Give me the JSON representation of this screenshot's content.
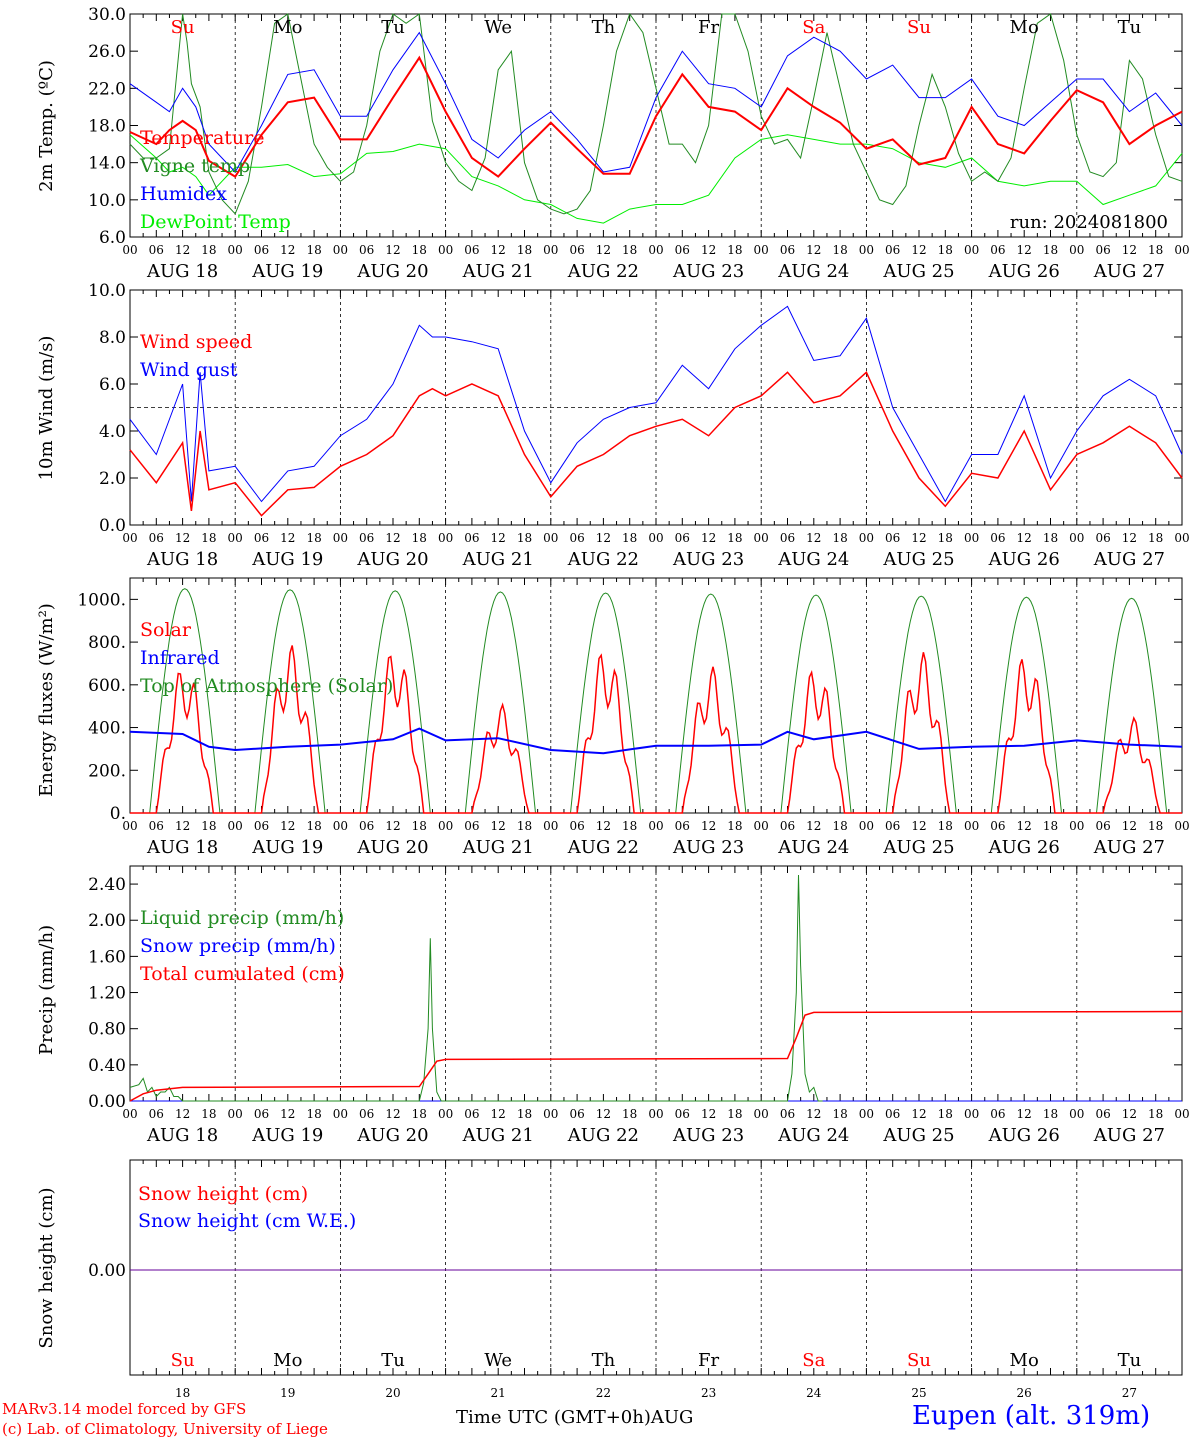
{
  "chart_data": [
    {
      "type": "line",
      "ylabel": "2m Temp. (ºC)",
      "ylim": [
        6.0,
        30.0
      ],
      "yticks": [
        "6.0",
        "10.0",
        "14.0",
        "18.0",
        "22.0",
        "26.0",
        "30.0"
      ],
      "run_label": "run: 2024081800",
      "x_unit": "hours since 2024-08-18 00 UTC",
      "series": [
        {
          "name": "Temperature",
          "color": "#ff0000",
          "x": [
            0,
            6,
            9,
            12,
            15,
            18,
            24,
            30,
            36,
            42,
            48,
            54,
            60,
            66,
            72,
            78,
            84,
            90,
            96,
            102,
            108,
            114,
            120,
            126,
            132,
            138,
            144,
            150,
            156,
            162,
            168,
            174,
            180,
            186,
            192,
            198,
            204,
            210,
            216,
            222,
            228,
            234,
            240
          ],
          "y": [
            17.3,
            16.0,
            17.5,
            18.5,
            17.5,
            14.2,
            12.5,
            17.0,
            20.5,
            21.0,
            16.5,
            16.5,
            21.0,
            25.3,
            19.5,
            14.5,
            12.5,
            15.5,
            18.3,
            15.5,
            12.8,
            12.8,
            19.0,
            23.5,
            20.0,
            19.5,
            17.5,
            22.0,
            20.0,
            18.3,
            15.5,
            16.5,
            13.8,
            14.5,
            20.0,
            16.0,
            15.0,
            18.5,
            21.8,
            20.5,
            16.0,
            18.0,
            19.5
          ]
        },
        {
          "name": "Vigne temp",
          "color": "#228b22",
          "x": [
            0,
            3,
            6,
            9,
            12,
            13,
            14,
            16,
            18,
            21,
            24,
            27,
            30,
            33,
            36,
            39,
            42,
            45,
            48,
            51,
            54,
            57,
            60,
            63,
            66,
            69,
            72,
            75,
            78,
            81,
            84,
            87,
            90,
            93,
            96,
            99,
            102,
            105,
            108,
            111,
            114,
            117,
            120,
            123,
            126,
            129,
            132,
            135,
            138,
            141,
            144,
            147,
            150,
            153,
            156,
            159,
            162,
            165,
            168,
            171,
            174,
            177,
            180,
            183,
            186,
            189,
            192,
            195,
            198,
            201,
            204,
            207,
            210,
            213,
            216,
            219,
            222,
            225,
            228,
            231,
            234,
            237,
            240
          ],
          "y": [
            16.0,
            14.5,
            14.5,
            15.5,
            30.0,
            27.0,
            22.5,
            20.0,
            13.0,
            10.0,
            8.5,
            12.0,
            20.0,
            29.0,
            30.0,
            23.0,
            16.0,
            13.5,
            12.0,
            13.0,
            18.0,
            26.0,
            30.0,
            29.0,
            30.0,
            18.5,
            14.0,
            12.0,
            11.0,
            14.5,
            24.0,
            26.0,
            14.0,
            10.0,
            9.0,
            8.5,
            9.0,
            11.0,
            18.0,
            26.0,
            30.0,
            28.0,
            22.0,
            16.0,
            16.0,
            14.0,
            18.0,
            30.0,
            30.0,
            26.0,
            19.0,
            16.0,
            16.5,
            14.5,
            21.0,
            28.0,
            22.0,
            16.0,
            13.0,
            10.0,
            9.5,
            11.5,
            18.0,
            23.5,
            20.0,
            15.0,
            12.0,
            13.0,
            12.0,
            14.5,
            22.0,
            29.0,
            30.0,
            25.0,
            17.0,
            13.0,
            12.5,
            14.0,
            25.0,
            23.0,
            17.0,
            12.5,
            12.0
          ]
        },
        {
          "name": "Humidex",
          "color": "#0000ff",
          "x": [
            0,
            6,
            9,
            12,
            15,
            18,
            24,
            30,
            36,
            42,
            48,
            54,
            60,
            66,
            72,
            78,
            84,
            90,
            96,
            102,
            108,
            114,
            120,
            126,
            132,
            138,
            144,
            150,
            156,
            162,
            168,
            174,
            180,
            186,
            192,
            198,
            204,
            210,
            216,
            222,
            228,
            234,
            240
          ],
          "y": [
            22.5,
            20.5,
            19.5,
            22.0,
            20.0,
            16.0,
            13.0,
            18.0,
            23.5,
            24.0,
            19.0,
            19.0,
            24.0,
            28.0,
            22.5,
            16.5,
            14.5,
            17.5,
            19.5,
            16.5,
            13.0,
            13.5,
            21.0,
            26.0,
            22.5,
            22.0,
            20.0,
            25.5,
            27.5,
            26.0,
            23.0,
            24.5,
            21.0,
            21.0,
            23.0,
            19.0,
            18.0,
            20.5,
            23.0,
            23.0,
            19.5,
            21.5,
            18.0
          ]
        },
        {
          "name": "DewPoint Temp",
          "color": "#00ee00",
          "x": [
            0,
            6,
            9,
            12,
            15,
            18,
            24,
            30,
            36,
            42,
            48,
            54,
            60,
            66,
            72,
            78,
            84,
            90,
            96,
            102,
            108,
            114,
            120,
            126,
            132,
            138,
            144,
            150,
            156,
            162,
            168,
            174,
            180,
            186,
            192,
            198,
            204,
            210,
            216,
            222,
            228,
            234,
            240
          ],
          "y": [
            17.0,
            14.5,
            13.0,
            13.5,
            12.5,
            10.5,
            13.5,
            13.5,
            13.8,
            12.5,
            12.8,
            15.0,
            15.2,
            16.0,
            15.5,
            12.5,
            11.5,
            10.0,
            9.5,
            8.0,
            7.5,
            9.0,
            9.5,
            9.5,
            10.5,
            14.5,
            16.5,
            17.0,
            16.5,
            16.0,
            16.0,
            15.5,
            14.0,
            13.5,
            14.5,
            12.0,
            11.5,
            12.0,
            12.0,
            9.5,
            10.5,
            11.5,
            15.0
          ]
        }
      ]
    },
    {
      "type": "line",
      "ylabel": "10m Wind (m/s)",
      "ylim": [
        0.0,
        10.0
      ],
      "yticks": [
        "0.0",
        "2.0",
        "4.0",
        "6.0",
        "8.0",
        "10.0"
      ],
      "ref_line": 5.0,
      "series": [
        {
          "name": "Wind speed",
          "color": "#ff0000",
          "x": [
            0,
            6,
            12,
            14,
            16,
            18,
            24,
            30,
            36,
            42,
            48,
            54,
            60,
            66,
            69,
            72,
            78,
            84,
            90,
            96,
            102,
            108,
            114,
            120,
            126,
            132,
            138,
            144,
            150,
            156,
            162,
            168,
            174,
            180,
            186,
            192,
            198,
            204,
            210,
            216,
            222,
            228,
            234,
            240
          ],
          "y": [
            3.2,
            1.8,
            3.5,
            0.6,
            4.0,
            1.5,
            1.8,
            0.4,
            1.5,
            1.6,
            2.5,
            3.0,
            3.8,
            5.5,
            5.8,
            5.5,
            6.0,
            5.5,
            3.0,
            1.2,
            2.5,
            3.0,
            3.8,
            4.2,
            4.5,
            3.8,
            5.0,
            5.5,
            6.5,
            5.2,
            5.5,
            6.5,
            4.0,
            2.0,
            0.8,
            2.2,
            2.0,
            4.0,
            1.5,
            3.0,
            3.5,
            4.2,
            3.5,
            2.0
          ]
        },
        {
          "name": "Wind gust",
          "color": "#0000ff",
          "x": [
            0,
            6,
            12,
            14,
            16,
            18,
            24,
            30,
            36,
            42,
            48,
            54,
            60,
            66,
            69,
            72,
            78,
            84,
            90,
            96,
            102,
            108,
            114,
            120,
            126,
            132,
            138,
            144,
            150,
            156,
            162,
            168,
            174,
            180,
            186,
            192,
            198,
            204,
            210,
            216,
            222,
            228,
            234,
            240
          ],
          "y": [
            4.5,
            3.0,
            6.0,
            1.0,
            6.5,
            2.3,
            2.5,
            1.0,
            2.3,
            2.5,
            3.8,
            4.5,
            6.0,
            8.5,
            8.0,
            8.0,
            7.8,
            7.5,
            4.0,
            1.8,
            3.5,
            4.5,
            5.0,
            5.2,
            6.8,
            5.8,
            7.5,
            8.5,
            9.3,
            7.0,
            7.2,
            8.8,
            5.0,
            3.0,
            1.0,
            3.0,
            3.0,
            5.5,
            2.0,
            4.0,
            5.5,
            6.2,
            5.5,
            3.0
          ]
        }
      ]
    },
    {
      "type": "line",
      "ylabel": "Energy fluxes (W/m²)",
      "ylim": [
        0,
        1100
      ],
      "yticks": [
        "0.",
        "200.",
        "400.",
        "600.",
        "800.",
        "1000."
      ],
      "series": [
        {
          "name": "Solar",
          "color": "#ff0000",
          "peaks": [
            700,
            790,
            780,
            510,
            780,
            690,
            690,
            760,
            750,
            450
          ]
        },
        {
          "name": "Infrared",
          "color": "#0000ff",
          "x": [
            0,
            12,
            18,
            24,
            36,
            48,
            60,
            66,
            72,
            84,
            96,
            108,
            120,
            132,
            144,
            150,
            156,
            168,
            180,
            192,
            204,
            216,
            228,
            240
          ],
          "y": [
            380,
            370,
            310,
            295,
            310,
            320,
            345,
            395,
            340,
            350,
            295,
            280,
            315,
            315,
            320,
            380,
            345,
            380,
            300,
            310,
            315,
            340,
            320,
            310
          ]
        },
        {
          "name": "Top of Atmosphere (Solar)",
          "color": "#228b22",
          "peaks": [
            1050,
            1045,
            1040,
            1035,
            1030,
            1025,
            1020,
            1015,
            1010,
            1005
          ]
        }
      ]
    },
    {
      "type": "line",
      "ylabel": "Precip (mm/h)",
      "ylim": [
        0.0,
        2.6
      ],
      "yticks": [
        "0.00",
        "0.40",
        "0.80",
        "1.20",
        "1.60",
        "2.00",
        "2.40"
      ],
      "series": [
        {
          "name": "Liquid precip (mm/h)",
          "color": "#228b22",
          "x": [
            0,
            2,
            3,
            4,
            5,
            6,
            7,
            8,
            9,
            10,
            11,
            12,
            14,
            66,
            67,
            68,
            68.5,
            69,
            70,
            71,
            72,
            150,
            151,
            152,
            152.5,
            153,
            154,
            155,
            156,
            157,
            158
          ],
          "y": [
            0.15,
            0.18,
            0.25,
            0.1,
            0.15,
            0.05,
            0.1,
            0.1,
            0.15,
            0.05,
            0.05,
            0,
            0,
            0,
            0.2,
            0.8,
            1.8,
            0.8,
            0.1,
            0,
            0,
            0,
            0.3,
            1.2,
            2.5,
            1.5,
            0.3,
            0.1,
            0.15,
            0,
            0
          ]
        },
        {
          "name": "Snow precip (mm/h)",
          "color": "#0000ff",
          "x": [
            0,
            240
          ],
          "y": [
            0,
            0
          ]
        },
        {
          "name": "Total cumulated (cm)",
          "color": "#ff0000",
          "x": [
            0,
            3,
            6,
            12,
            66,
            68,
            70,
            72,
            150,
            152,
            154,
            156,
            240
          ],
          "y": [
            0.0,
            0.08,
            0.12,
            0.15,
            0.16,
            0.3,
            0.44,
            0.46,
            0.47,
            0.7,
            0.95,
            0.98,
            0.99
          ]
        }
      ]
    },
    {
      "type": "line",
      "ylabel": "Snow height (cm)",
      "yticks": [
        "0.00"
      ],
      "series": [
        {
          "name": "Snow height (cm)",
          "color": "#ff0000",
          "x": [
            0,
            240
          ],
          "y": [
            0,
            0
          ]
        },
        {
          "name": "Snow height (cm W.E.)",
          "color": "#0000ff",
          "x": [
            0,
            240
          ],
          "y": [
            0,
            0
          ]
        }
      ]
    }
  ],
  "x_axis": {
    "hour_ticks": [
      "00",
      "06",
      "12",
      "18"
    ],
    "dates": [
      "AUG 18",
      "AUG 19",
      "AUG 20",
      "AUG 21",
      "AUG 22",
      "AUG 23",
      "AUG 24",
      "AUG 25",
      "AUG 26",
      "AUG 27"
    ],
    "weekdays": [
      "Su",
      "Mo",
      "Tu",
      "We",
      "Th",
      "Fr",
      "Sa",
      "Su",
      "Mo",
      "Tu"
    ],
    "weekend_color": "#ff0000",
    "weekday_color": "#000000",
    "day_numbers": [
      "18",
      "19",
      "20",
      "21",
      "22",
      "23",
      "24",
      "25",
      "26",
      "27"
    ],
    "month": "AUG"
  },
  "footer": {
    "model_line": "MARv3.14 model forced by GFS",
    "credit_line": "(c) Lab. of Climatology, University of Liege",
    "xlabel": "Time UTC (GMT+0h)AUG",
    "site": "Eupen (alt. 319m)"
  }
}
